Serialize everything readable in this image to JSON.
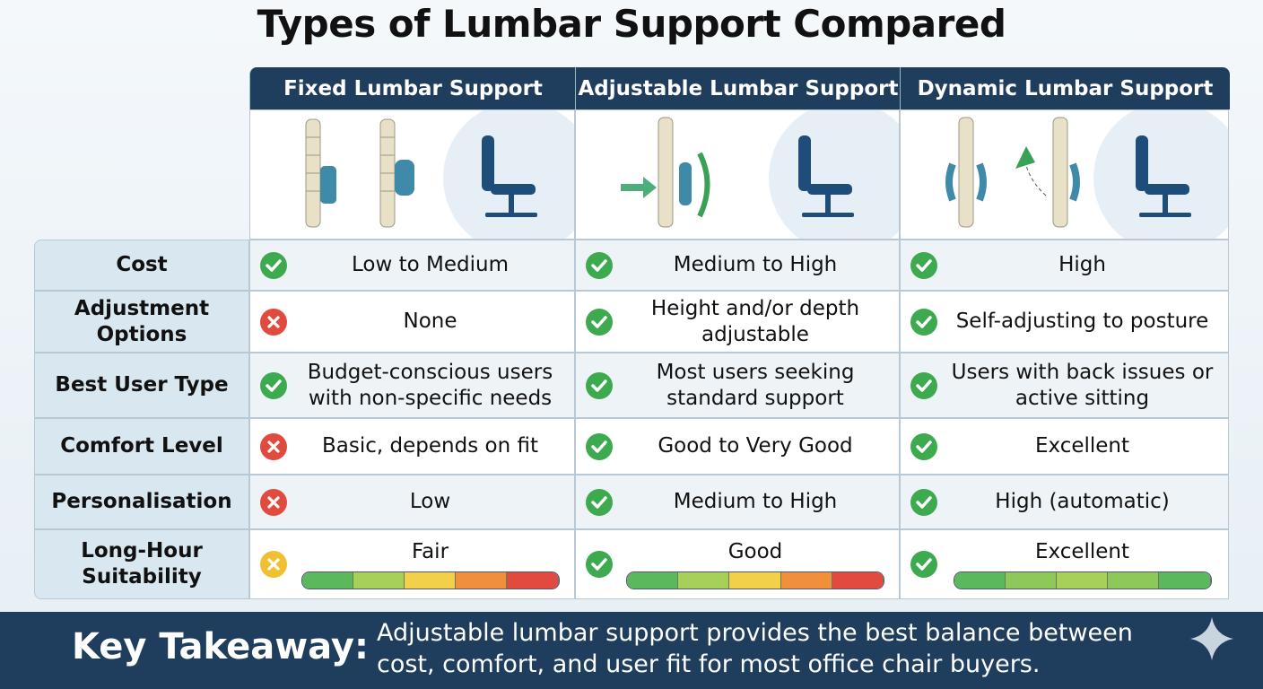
{
  "header": {
    "title": "Types of Lumbar Support Compared"
  },
  "table": {
    "columns": [
      "Fixed Lumbar Support",
      "Adjustable Lumbar Support",
      "Dynamic Lumbar Support"
    ],
    "rows": [
      {
        "label": "Cost",
        "cells": [
          {
            "text": "Low to Medium",
            "icon": "check"
          },
          {
            "text": "Medium to High",
            "icon": "check"
          },
          {
            "text": "High",
            "icon": "check"
          }
        ]
      },
      {
        "label": "Adjustment Options",
        "cells": [
          {
            "text": "None",
            "icon": "cross"
          },
          {
            "text": "Height and/or depth adjustable",
            "icon": "check"
          },
          {
            "text": "Self-adjusting to posture",
            "icon": "check"
          }
        ]
      },
      {
        "label": "Best User Type",
        "cells": [
          {
            "text": "Budget-conscious users with non-specific needs",
            "icon": "check"
          },
          {
            "text": "Most users seeking standard support",
            "icon": "check"
          },
          {
            "text": "Users with back issues or active sitting",
            "icon": "check"
          }
        ]
      },
      {
        "label": "Comfort Level",
        "cells": [
          {
            "text": "Basic, depends on fit",
            "icon": "cross"
          },
          {
            "text": "Good to Very Good",
            "icon": "check"
          },
          {
            "text": "Excellent",
            "icon": "check"
          }
        ]
      },
      {
        "label": "Personalisation",
        "cells": [
          {
            "text": "Low",
            "icon": "cross"
          },
          {
            "text": "Medium to High",
            "icon": "check"
          },
          {
            "text": "High (automatic)",
            "icon": "check"
          }
        ]
      },
      {
        "label": "Long-Hour Suitability",
        "cells": [
          {
            "text": "Fair",
            "icon": "caution",
            "meter": [
              "#5cb85c",
              "#a6d05a",
              "#f2d04a",
              "#f0903a",
              "#e04a3f"
            ]
          },
          {
            "text": "Good",
            "icon": "check",
            "meter": [
              "#5cb85c",
              "#a6d05a",
              "#f2d04a",
              "#f0903a",
              "#e04a3f"
            ]
          },
          {
            "text": "Excellent",
            "icon": "check",
            "meter": [
              "#5cb85c",
              "#8cc85a",
              "#a6d05a",
              "#8cc85a",
              "#5cb85c"
            ]
          }
        ]
      }
    ]
  },
  "footer": {
    "label": "Key Takeaway:",
    "text": "Adjustable lumbar support provides the best balance between cost, comfort, and user fit for most office chair buyers."
  }
}
